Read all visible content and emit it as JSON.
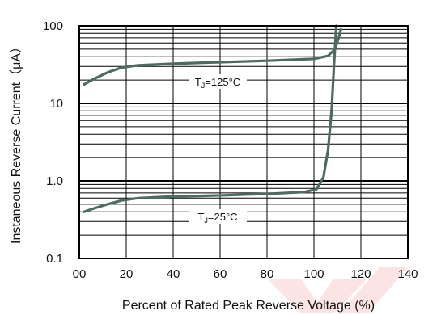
{
  "chart_data": {
    "type": "line",
    "title": "",
    "xlabel": "Percent of Rated  Peak Reverse Voltage (%)",
    "ylabel": "Instaneous Reverse Current（μA）",
    "xlim": [
      0,
      140
    ],
    "ylim": [
      0.1,
      100
    ],
    "y_scale": "log",
    "grid": true,
    "x_tick_labels": [
      "00",
      "20",
      "40",
      "60",
      "80",
      "100",
      "120",
      "140"
    ],
    "x_ticks": [
      0,
      20,
      40,
      60,
      80,
      100,
      120,
      140
    ],
    "y_tick_labels": [
      "0.1",
      "1.0",
      "10",
      "100"
    ],
    "y_ticks": [
      0.1,
      1,
      10,
      100
    ],
    "series": [
      {
        "label_prefix": "T",
        "label_sub": "J",
        "label_suffix": "=125°C",
        "color": "#4d6b62",
        "points": [
          [
            2,
            17.5
          ],
          [
            6,
            20.5
          ],
          [
            12,
            25
          ],
          [
            18,
            29
          ],
          [
            25,
            31
          ],
          [
            40,
            32.5
          ],
          [
            60,
            34
          ],
          [
            80,
            35.5
          ],
          [
            100,
            37.5
          ],
          [
            106,
            41
          ],
          [
            109,
            50
          ],
          [
            110.5,
            70
          ],
          [
            111.5,
            90
          ]
        ]
      },
      {
        "label_prefix": "T",
        "label_sub": "J",
        "label_suffix": "=25°C",
        "color": "#4d6b62",
        "points": [
          [
            2,
            0.4
          ],
          [
            6,
            0.44
          ],
          [
            12,
            0.5
          ],
          [
            18,
            0.56
          ],
          [
            25,
            0.6
          ],
          [
            40,
            0.63
          ],
          [
            60,
            0.65
          ],
          [
            80,
            0.68
          ],
          [
            96,
            0.72
          ],
          [
            101,
            0.78
          ],
          [
            104,
            1.1
          ],
          [
            106,
            2.5
          ],
          [
            107.5,
            8
          ],
          [
            108.5,
            30
          ],
          [
            109.5,
            100
          ]
        ]
      }
    ],
    "colors": {
      "curve": "#4d6b62",
      "grid": "#000000",
      "watermark": "#fbd5d5"
    }
  }
}
